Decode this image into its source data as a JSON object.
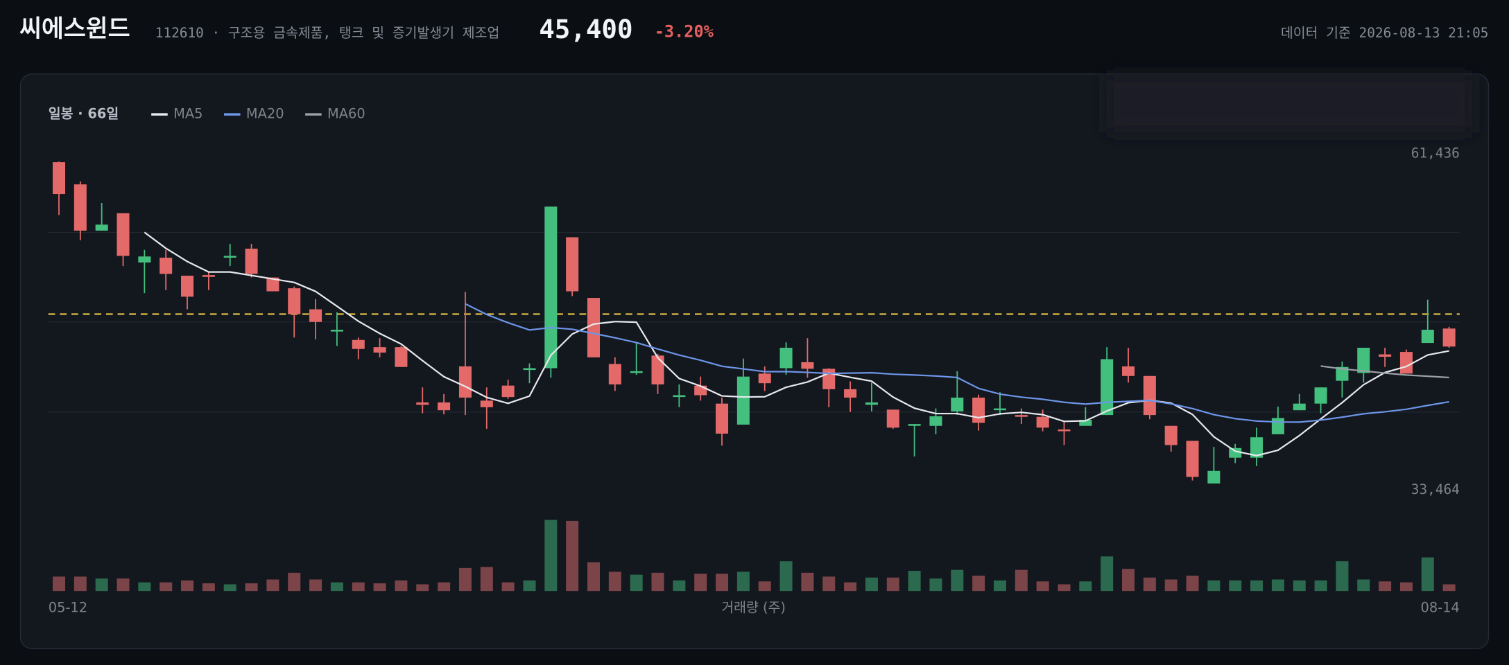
{
  "header": {
    "title": "씨에스윈드",
    "subtitle": "112610 · 구조용 금속제품, 탱크 및 증기발생기 제조업",
    "price": "45,400",
    "change": "-3.20%",
    "timestamp": "데이터 기준 2026-08-13 21:05"
  },
  "chart_data": {
    "type": "candlestick",
    "label": "일봉 · 66일",
    "categories": [
      "05-12",
      null,
      null,
      null,
      null,
      null,
      null,
      null,
      null,
      null,
      null,
      null,
      null,
      null,
      null,
      null,
      null,
      null,
      null,
      null,
      null,
      null,
      null,
      null,
      null,
      null,
      null,
      null,
      null,
      null,
      null,
      null,
      null,
      null,
      null,
      null,
      null,
      null,
      null,
      null,
      null,
      null,
      null,
      null,
      null,
      null,
      null,
      null,
      null,
      null,
      null,
      null,
      null,
      null,
      null,
      null,
      null,
      null,
      null,
      null,
      null,
      null,
      null,
      null,
      null,
      "08-14"
    ],
    "open": [
      60750,
      58900,
      55050,
      56500,
      52400,
      52800,
      51300,
      51350,
      52800,
      53550,
      51150,
      50250,
      48500,
      46650,
      45950,
      45350,
      45350,
      40750,
      40750,
      43750,
      40900,
      42150,
      43450,
      43600,
      54500,
      49450,
      43950,
      43200,
      44650,
      41200,
      42150,
      40650,
      38900,
      43150,
      43600,
      44100,
      43550,
      41850,
      40550,
      40150,
      38800,
      38800,
      40000,
      41150,
      40100,
      39700,
      39550,
      38500,
      38800,
      39700,
      43750,
      42950,
      38800,
      37550,
      34000,
      36150,
      36150,
      38100,
      40100,
      40650,
      42550,
      43200,
      44750,
      44950,
      45700,
      46900
    ],
    "high": [
      60800,
      59150,
      57350,
      56500,
      53450,
      53450,
      51300,
      51600,
      53950,
      53950,
      51150,
      50400,
      49350,
      48250,
      46150,
      46100,
      45450,
      42000,
      41450,
      49950,
      42000,
      42650,
      44000,
      57050,
      54500,
      49450,
      44500,
      45750,
      44800,
      42250,
      42900,
      41150,
      44400,
      43750,
      45750,
      46100,
      43600,
      42500,
      42400,
      40150,
      38950,
      40250,
      43350,
      41400,
      41600,
      40250,
      40150,
      39200,
      40350,
      45350,
      45300,
      42950,
      38800,
      37550,
      37050,
      37300,
      38650,
      40400,
      41450,
      42000,
      44150,
      45300,
      45300,
      45150,
      49300,
      47050
    ],
    "low": [
      56350,
      54250,
      55050,
      52100,
      49850,
      50100,
      48500,
      50100,
      52100,
      51150,
      50000,
      46150,
      46000,
      45450,
      44350,
      44500,
      43700,
      39850,
      39750,
      39700,
      38550,
      41050,
      42350,
      42800,
      49600,
      44500,
      41700,
      43050,
      41450,
      40350,
      40900,
      37150,
      38900,
      41700,
      43050,
      42800,
      40350,
      39950,
      40000,
      38550,
      36250,
      38100,
      39700,
      38400,
      39700,
      38950,
      38350,
      37200,
      38800,
      39700,
      42400,
      39350,
      36650,
      34250,
      34000,
      35700,
      35450,
      38100,
      40100,
      39850,
      41150,
      42400,
      43700,
      43150,
      45700,
      45300
    ],
    "close": [
      58100,
      55050,
      55550,
      52950,
      52900,
      51450,
      49550,
      51200,
      52950,
      51450,
      50000,
      48100,
      47450,
      46800,
      45200,
      44900,
      43700,
      40550,
      40100,
      41150,
      40350,
      41200,
      43600,
      57050,
      50000,
      44500,
      42250,
      43350,
      42250,
      41350,
      41350,
      38150,
      42900,
      42350,
      45300,
      43550,
      41850,
      41150,
      40750,
      38650,
      38950,
      39600,
      41150,
      39050,
      40250,
      39550,
      38650,
      38350,
      39300,
      44350,
      42950,
      39700,
      37200,
      34550,
      35050,
      36950,
      37850,
      39450,
      40650,
      42000,
      43700,
      45300,
      44550,
      43150,
      46800,
      45400
    ],
    "volume": [
      15,
      15,
      13,
      13,
      9,
      9,
      11,
      8,
      7,
      8,
      12,
      19,
      12,
      9,
      9,
      8,
      11,
      7,
      9,
      24,
      25,
      9,
      11,
      74,
      73,
      30,
      20,
      17,
      19,
      11,
      18,
      18,
      20,
      10,
      31,
      19,
      15,
      9,
      14,
      14,
      21,
      13,
      22,
      16,
      11,
      22,
      10,
      7,
      10,
      36,
      23,
      14,
      12,
      16,
      11,
      11,
      11,
      12,
      11,
      11,
      31,
      12,
      10,
      9,
      35,
      7
    ],
    "volume_label": "거래량 (주)",
    "up_color": "#44c07e",
    "down_color": "#e46a6a",
    "up_volume_color": "#2b6a4e",
    "down_volume_color": "#7a4448",
    "series": [
      {
        "name": "MA5",
        "color": "#e6e8ec",
        "values": [
          null,
          null,
          null,
          null,
          54910,
          53580,
          52480,
          51610,
          51610,
          51320,
          51030,
          50740,
          49990,
          48760,
          47510,
          46490,
          45610,
          44230,
          42890,
          42080,
          41170,
          40670,
          41280,
          44670,
          46440,
          47270,
          47480,
          47430,
          44470,
          42740,
          42110,
          41290,
          41200,
          41220,
          42010,
          42450,
          43190,
          42840,
          42520,
          41190,
          40270,
          39820,
          39820,
          39480,
          39800,
          39920,
          39730,
          39170,
          39220,
          40040,
          40720,
          40930,
          40700,
          39750,
          37890,
          36690,
          36320,
          36770,
          37990,
          39380,
          40730,
          42220,
          43240,
          43740,
          44700,
          45040
        ]
      },
      {
        "name": "MA20",
        "color": "#6d95e8",
        "values": [
          null,
          null,
          null,
          null,
          null,
          null,
          null,
          null,
          null,
          null,
          null,
          null,
          null,
          null,
          null,
          null,
          null,
          null,
          null,
          48955,
          48070,
          47380,
          46780,
          46980,
          46840,
          46490,
          46130,
          45730,
          45200,
          44690,
          44260,
          43760,
          43540,
          43310,
          43320,
          43250,
          43160,
          43190,
          43220,
          43100,
          43030,
          42950,
          42820,
          41920,
          41440,
          41190,
          41010,
          40760,
          40610,
          40760,
          40840,
          40920,
          40630,
          40240,
          39730,
          39400,
          39200,
          39120,
          39110,
          39280,
          39520,
          39800,
          39970,
          40180,
          40500,
          40800
        ]
      },
      {
        "name": "MA60",
        "color": "#9a9ea6",
        "values": [
          null,
          null,
          null,
          null,
          null,
          null,
          null,
          null,
          null,
          null,
          null,
          null,
          null,
          null,
          null,
          null,
          null,
          null,
          null,
          null,
          null,
          null,
          null,
          null,
          null,
          null,
          null,
          null,
          null,
          null,
          null,
          null,
          null,
          null,
          null,
          null,
          null,
          null,
          null,
          null,
          null,
          null,
          null,
          null,
          null,
          null,
          null,
          null,
          null,
          null,
          null,
          null,
          null,
          null,
          null,
          null,
          null,
          null,
          null,
          43780,
          43540,
          43370,
          43190,
          43030,
          42930,
          42820
        ]
      }
    ],
    "ylim": [
      32490,
      62330
    ],
    "yticks": [
      {
        "value": 61436,
        "label": "61,436"
      },
      {
        "value": 33464,
        "label": "33,464"
      }
    ],
    "gridlines": [
      54900,
      47450,
      39950
    ],
    "reference_line": 48100,
    "reference_color": "#e8c547"
  }
}
